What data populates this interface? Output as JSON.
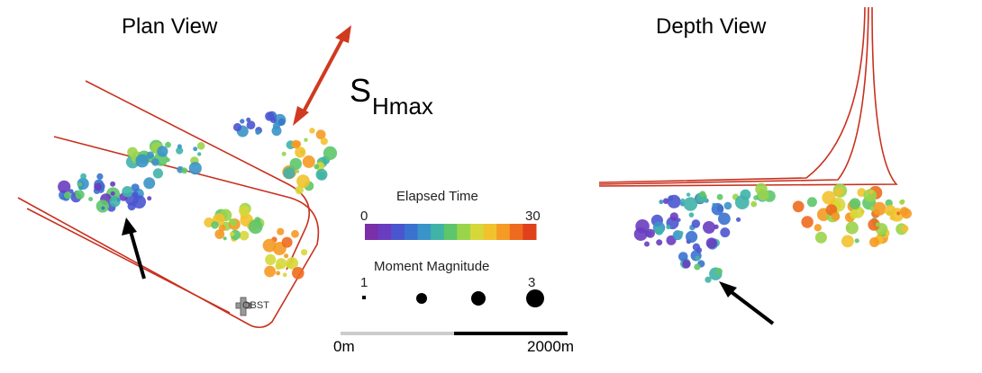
{
  "titles": {
    "plan": "Plan View",
    "depth": "Depth View"
  },
  "stress": {
    "main": "S",
    "sub": "Hmax"
  },
  "legend": {
    "time_title": "Elapsed Time",
    "time_min": "0",
    "time_max": "30",
    "mag_title": "Moment Magnitude",
    "mag_min": "1",
    "mag_max": "3",
    "colorbar": [
      "#7b2fa8",
      "#6a3cc0",
      "#4b55d0",
      "#3a72cf",
      "#3a94c8",
      "#3fb3a8",
      "#5ec66a",
      "#9ad44a",
      "#d6d83a",
      "#f2c22e",
      "#f59a24",
      "#ee6a1e",
      "#e0401a"
    ]
  },
  "scale": {
    "zero": "0m",
    "max": "2000m"
  },
  "station": {
    "label": "OBST"
  },
  "colors": {
    "wellbore": "#c8301e",
    "arrow_shmax": "#d03a20",
    "pointer": "#000000"
  }
}
